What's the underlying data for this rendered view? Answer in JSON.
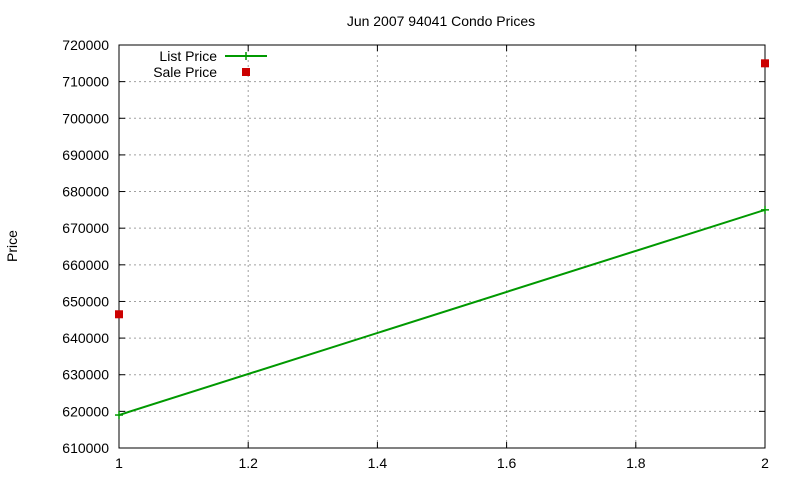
{
  "chart_data": {
    "type": "line",
    "title": "Jun 2007 94041 Condo Prices",
    "xlabel": "",
    "ylabel": "Price",
    "xlim": [
      1,
      2
    ],
    "ylim": [
      610000,
      720000
    ],
    "x_ticks": [
      1,
      1.2,
      1.4,
      1.6,
      1.8,
      2
    ],
    "x_tick_labels": [
      "1",
      "1.2",
      "1.4",
      "1.6",
      "1.8",
      "2"
    ],
    "y_ticks": [
      610000,
      620000,
      630000,
      640000,
      650000,
      660000,
      670000,
      680000,
      690000,
      700000,
      710000,
      720000
    ],
    "y_tick_labels": [
      "610000",
      "620000",
      "630000",
      "640000",
      "650000",
      "660000",
      "670000",
      "680000",
      "690000",
      "700000",
      "710000",
      "720000"
    ],
    "grid": true,
    "legend_position": "top-left",
    "series": [
      {
        "name": "List Price",
        "style": "linespoints",
        "color": "#009900",
        "marker": "plus",
        "points": [
          [
            1,
            619000
          ],
          [
            2,
            675000
          ]
        ]
      },
      {
        "name": "Sale Price",
        "style": "points",
        "color": "#cc0000",
        "marker": "square",
        "points": [
          [
            1,
            646500
          ],
          [
            2,
            715000
          ]
        ]
      }
    ]
  }
}
